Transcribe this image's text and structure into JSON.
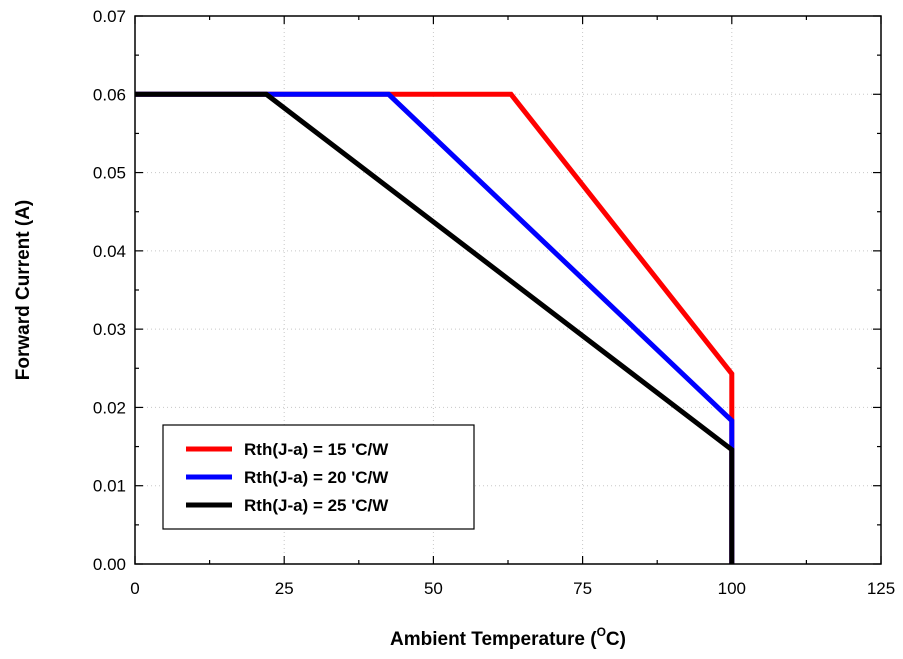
{
  "chart_data": {
    "type": "line",
    "xlabel": "Ambient Temperature (",
    "xlabel_sup": "O",
    "xlabel_tail": "C)",
    "ylabel": "Forward Current (A)",
    "xlim": [
      0,
      125
    ],
    "ylim": [
      0,
      0.07
    ],
    "xticks": [
      "0",
      "25",
      "50",
      "75",
      "100",
      "125"
    ],
    "yticks": [
      "0.00",
      "0.01",
      "0.02",
      "0.03",
      "0.04",
      "0.05",
      "0.06",
      "0.07"
    ],
    "grid": true,
    "legend_position": "bottom-left",
    "series": [
      {
        "name": "Rth(J-a) = 15 'C/W",
        "color": "#ff0000",
        "points": [
          [
            0,
            0.06
          ],
          [
            63,
            0.06
          ],
          [
            100,
            0.0243
          ],
          [
            100,
            0
          ]
        ]
      },
      {
        "name": "Rth(J-a) = 20 'C/W",
        "color": "#0000ff",
        "points": [
          [
            0,
            0.06
          ],
          [
            42.5,
            0.06
          ],
          [
            100,
            0.0183
          ],
          [
            100,
            0
          ]
        ]
      },
      {
        "name": "Rth(J-a) = 25 'C/W",
        "color": "#000000",
        "points": [
          [
            0,
            0.06
          ],
          [
            22,
            0.06
          ],
          [
            100,
            0.0146
          ],
          [
            100,
            0
          ]
        ]
      }
    ]
  }
}
